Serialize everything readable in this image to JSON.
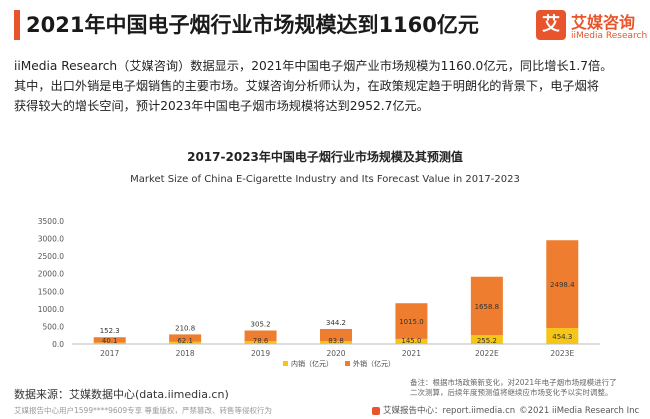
{
  "header": {
    "title": "2021年中国电子烟行业市场规模达到1160亿元",
    "logo_mark": "艾",
    "logo_name": "艾媒咨询",
    "logo_sub": "iiMedia Research"
  },
  "intro": {
    "line1": "iiMedia Research（艾媒咨询）数据显示，2021年中国电子烟产业市场规模为1160.0亿元，同比增长1.7倍。",
    "line2": "其中，出口外销是电子烟销售的主要市场。艾媒咨询分析师认为，在政策规定趋于明朗化的背景下，电子烟将",
    "line3": "获得较大的增长空间，预计2023年中国电子烟市场规模将达到2952.7亿元。"
  },
  "colors": {
    "accent": "#e8542b",
    "domestic": "#f5c518",
    "export": "#ee7d2f"
  },
  "chart_data": {
    "type": "bar",
    "stacked": true,
    "title": "2017-2023年中国电子烟行业市场规模及其预测值",
    "subtitle": "Market Size of China E-Cigarette Industry and Its Forecast Value in 2017-2023",
    "categories": [
      "2017",
      "2018",
      "2019",
      "2020",
      "2021",
      "2022E",
      "2023E"
    ],
    "series": [
      {
        "name": "内销（亿元）",
        "values": [
          40.1,
          62.1,
          78.6,
          83.8,
          145.0,
          255.2,
          454.3
        ]
      },
      {
        "name": "外销（亿元）",
        "values": [
          152.3,
          210.8,
          305.2,
          344.2,
          1015.0,
          1658.8,
          2498.4
        ]
      }
    ],
    "y_ticks": [
      "0.0",
      "500.0",
      "1000.0",
      "1500.0",
      "2000.0",
      "2500.0",
      "3000.0",
      "3500.0"
    ],
    "ylim": [
      0,
      3500
    ],
    "grid": false,
    "legend_position": "bottom"
  },
  "footer": {
    "source": "数据来源：艾媒数据中心(data.iimedia.cn)",
    "note_line1": "备注：根据市场政策新变化，对2021年电子烟市场规模进行了",
    "note_line2": "二次测算，后续年度预测值将继续应市场变化予以实时调整。",
    "watermark": "艾媒报告中心用户1599****9609专享 尊重版权，严禁篡改、转售等侵权行为",
    "center_label": "艾媒报告中心：",
    "center_url": "report.iimedia.cn",
    "copyright": "©2021  iiMedia Research  Inc"
  }
}
